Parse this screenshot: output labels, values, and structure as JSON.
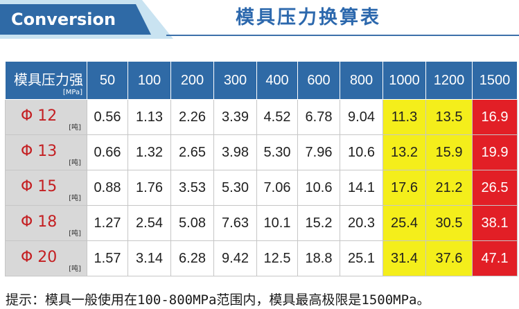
{
  "header": {
    "tag": "Conversion",
    "title": "模具压力换算表"
  },
  "table": {
    "corner_label": "模具压力强",
    "corner_unit": "[MPa]",
    "columns": [
      "50",
      "100",
      "200",
      "300",
      "400",
      "600",
      "800",
      "1000",
      "1200",
      "1500"
    ],
    "row_unit": "[吨]",
    "rows": [
      {
        "label": "Φ 12",
        "values": [
          "0.56",
          "1.13",
          "2.26",
          "3.39",
          "4.52",
          "6.78",
          "9.04",
          "11.3",
          "13.5",
          "16.9"
        ]
      },
      {
        "label": "Φ 13",
        "values": [
          "0.66",
          "1.32",
          "2.65",
          "3.98",
          "5.30",
          "7.96",
          "10.6",
          "13.2",
          "15.9",
          "19.9"
        ]
      },
      {
        "label": "Φ 15",
        "values": [
          "0.88",
          "1.76",
          "3.53",
          "5.30",
          "7.06",
          "10.6",
          "14.1",
          "17.6",
          "21.2",
          "26.5"
        ]
      },
      {
        "label": "Φ 18",
        "values": [
          "1.27",
          "2.54",
          "5.08",
          "7.63",
          "10.1",
          "15.2",
          "20.3",
          "25.4",
          "30.5",
          "38.1"
        ]
      },
      {
        "label": "Φ 20",
        "values": [
          "1.57",
          "3.14",
          "6.28",
          "9.42",
          "12.5",
          "18.8",
          "25.1",
          "31.4",
          "37.6",
          "47.1"
        ]
      }
    ],
    "colors": {
      "header": "#2f6aa6",
      "label_bg": "#d8d8d8",
      "label_text": "#c41f22",
      "yellow": "#f4ee1b",
      "red": "#e21f26"
    }
  },
  "note": "提示：模具一般使用在100-800MPa范围内，模具最高极限是1500MPa。"
}
